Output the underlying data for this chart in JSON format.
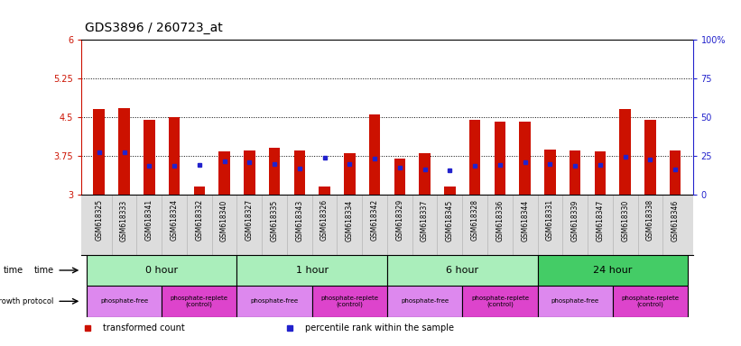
{
  "title": "GDS3896 / 260723_at",
  "samples": [
    "GSM618325",
    "GSM618333",
    "GSM618341",
    "GSM618324",
    "GSM618332",
    "GSM618340",
    "GSM618327",
    "GSM618335",
    "GSM618343",
    "GSM618326",
    "GSM618334",
    "GSM618342",
    "GSM618329",
    "GSM618337",
    "GSM618345",
    "GSM618328",
    "GSM618336",
    "GSM618344",
    "GSM618331",
    "GSM618339",
    "GSM618347",
    "GSM618330",
    "GSM618338",
    "GSM618346"
  ],
  "transformed_count": [
    4.65,
    4.68,
    4.45,
    4.5,
    3.15,
    3.83,
    3.85,
    3.9,
    3.85,
    3.15,
    3.8,
    4.55,
    3.7,
    3.8,
    3.15,
    4.45,
    4.42,
    4.42,
    3.88,
    3.85,
    3.83,
    4.65,
    4.45,
    3.85
  ],
  "percentile_rank_val": [
    3.82,
    3.82,
    3.55,
    3.56,
    3.57,
    3.65,
    3.63,
    3.6,
    3.5,
    3.72,
    3.6,
    3.7,
    3.52,
    3.48,
    3.47,
    3.55,
    3.58,
    3.62,
    3.6,
    3.55,
    3.58,
    3.74,
    3.68,
    3.48
  ],
  "ylim_left": [
    3.0,
    6.0
  ],
  "ylim_right": [
    0,
    100
  ],
  "yticks_left": [
    3.0,
    3.75,
    4.5,
    5.25,
    6.0
  ],
  "ytick_labels_left": [
    "3",
    "3.75",
    "4.5",
    "5.25",
    "6"
  ],
  "yticks_right": [
    0,
    25,
    50,
    75,
    100
  ],
  "ytick_labels_right": [
    "0",
    "25",
    "50",
    "75",
    "100%"
  ],
  "hlines": [
    3.75,
    4.5,
    5.25
  ],
  "bar_color": "#cc1100",
  "blue_color": "#2222cc",
  "bar_width": 0.45,
  "time_groups": [
    {
      "label": "0 hour",
      "start": 0,
      "end": 5,
      "color": "#aaeebb"
    },
    {
      "label": "1 hour",
      "start": 6,
      "end": 11,
      "color": "#aaeebb"
    },
    {
      "label": "6 hour",
      "start": 12,
      "end": 17,
      "color": "#aaeebb"
    },
    {
      "label": "24 hour",
      "start": 18,
      "end": 23,
      "color": "#44cc66"
    }
  ],
  "protocol_groups": [
    {
      "label": "phosphate-free",
      "start": 0,
      "end": 2,
      "color": "#dd88ee"
    },
    {
      "label": "phosphate-replete\n(control)",
      "start": 3,
      "end": 5,
      "color": "#dd44cc"
    },
    {
      "label": "phosphate-free",
      "start": 6,
      "end": 8,
      "color": "#dd88ee"
    },
    {
      "label": "phosphate-replete\n(control)",
      "start": 9,
      "end": 11,
      "color": "#dd44cc"
    },
    {
      "label": "phosphate-free",
      "start": 12,
      "end": 14,
      "color": "#dd88ee"
    },
    {
      "label": "phosphate-replete\n(control)",
      "start": 15,
      "end": 17,
      "color": "#dd44cc"
    },
    {
      "label": "phosphate-free",
      "start": 18,
      "end": 20,
      "color": "#dd88ee"
    },
    {
      "label": "phosphate-replete\n(control)",
      "start": 21,
      "end": 23,
      "color": "#dd44cc"
    }
  ],
  "legend_labels": [
    "transformed count",
    "percentile rank within the sample"
  ],
  "legend_colors": [
    "#cc1100",
    "#2222cc"
  ],
  "bg_color": "#ffffff",
  "label_color_left": "#cc1100",
  "label_color_right": "#2222cc",
  "title_fontsize": 10,
  "tick_fontsize": 7,
  "sample_label_fontsize": 5.5,
  "gray_bg": "#dddddd"
}
